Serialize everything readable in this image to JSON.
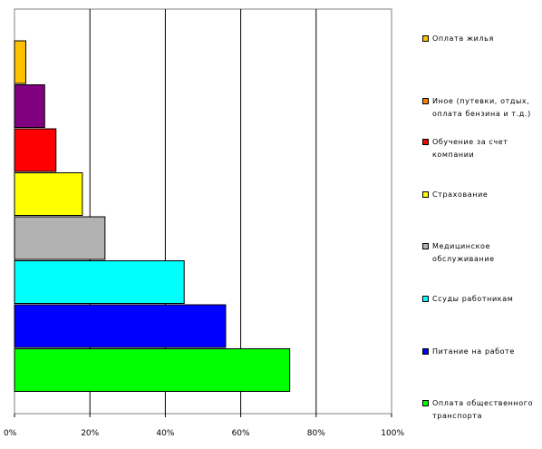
{
  "chart_data": {
    "type": "bar",
    "orientation": "horizontal",
    "title": "",
    "xlabel": "",
    "ylabel": "",
    "xlim": [
      0,
      100
    ],
    "x_ticks": [
      0,
      20,
      40,
      60,
      80,
      100
    ],
    "x_tick_labels": [
      "0%",
      "20%",
      "40%",
      "60%",
      "80%",
      "100%"
    ],
    "grid": "vertical",
    "legend_position": "right",
    "categories": [
      "Оплата жилья",
      "Иное (путевки, отдых, оплата бензина и т.д.)",
      "Обучение за счет компании",
      "Страхование",
      "Медицинское обслуживание",
      "Ссуды работникам",
      "Питание на работе",
      "Оплата общественного транспорта"
    ],
    "values": [
      3,
      8,
      11,
      18,
      24,
      45,
      56,
      73
    ],
    "colors": [
      "#FFC000",
      "#800080",
      "#FF0000",
      "#FFFF00",
      "#B2B2B2",
      "#00FFFF",
      "#0000FF",
      "#00FF00"
    ],
    "legend_colors": [
      "#FFC000",
      "#FF8000",
      "#FF0000",
      "#FFFF00",
      "#B2B2B2",
      "#00FFFF",
      "#0000FF",
      "#00FF00"
    ]
  }
}
